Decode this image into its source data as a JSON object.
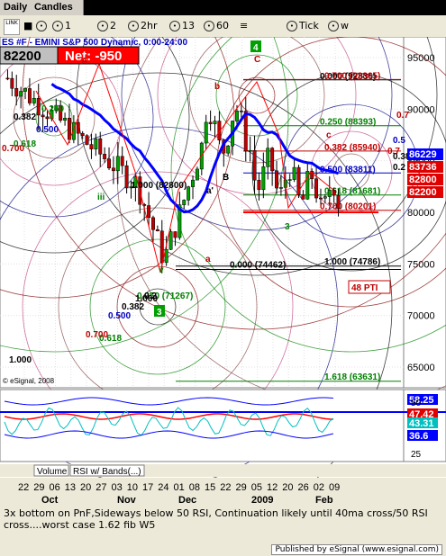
{
  "window": {
    "tab1": "Daily",
    "tab2": "Candles"
  },
  "toolbar": {
    "items": [
      {
        "icon": "link-icon",
        "label": "LINK"
      },
      {
        "icon": "circle-icon",
        "label": "1"
      },
      {
        "icon": "circle-icon",
        "label": "2"
      },
      {
        "icon": "circle-icon",
        "label": "2hr"
      },
      {
        "icon": "circle-icon",
        "label": "13"
      },
      {
        "icon": "circle-icon",
        "label": "60"
      },
      {
        "icon": "circle-icon",
        "label": "Tick"
      },
      {
        "icon": "circle-icon",
        "label": "w"
      }
    ]
  },
  "header": {
    "symbol_line": "ES #F - EMINI S&P 500 Dynamic, 0:00-24:00",
    "price": "82200",
    "net": "Net: -950",
    "box4": "4",
    "box3": "3"
  },
  "chart_data": {
    "type": "candlestick",
    "y_range": [
      63000,
      97000
    ],
    "y_ticks": [
      "95000",
      "90000",
      "85000",
      "80000",
      "75000",
      "70000",
      "65000"
    ],
    "x_ticks": [
      "22",
      "29",
      "06",
      "13",
      "20",
      "27",
      "03",
      "10",
      "17",
      "24",
      "01",
      "08",
      "15",
      "22",
      "29",
      "05",
      "12",
      "20",
      "26",
      "02",
      "09"
    ],
    "x_group_labels": [
      "Oct",
      "Nov",
      "Dec",
      "2009",
      "Feb"
    ],
    "right_badges": [
      {
        "label": "86229",
        "color": "#0000ff"
      },
      {
        "label": "83736",
        "color": "#e00000"
      },
      {
        "label": "82800",
        "color": "#e00000"
      },
      {
        "label": "82200",
        "color": "#e00000"
      }
    ],
    "fib_levels_upper": [
      {
        "label": "0.000 (92836)",
        "value": 92836
      },
      {
        "label": "0.700 (92865)",
        "value": 92865
      },
      {
        "label": "0.250 (88393)",
        "value": 88393
      },
      {
        "label": "0.382 (85940)",
        "value": 85940
      },
      {
        "label": "0.500 (83811)",
        "value": 83811
      },
      {
        "label": "0.618 (81681)",
        "value": 81681
      },
      {
        "label": "0.700 (80201)",
        "value": 80201
      }
    ],
    "fib_levels_lower": [
      {
        "label": "0.000 (74462)",
        "value": 74462
      },
      {
        "label": "1.000 (74786)",
        "value": 74786
      },
      {
        "label": "1.618 (63631)",
        "value": 63631
      }
    ],
    "annotations": [
      "A",
      "C",
      "a",
      "b",
      "c",
      "B",
      "a'",
      "iii",
      "3",
      "v",
      "48 PTI",
      "1.000",
      "0.382",
      "0.500",
      "0.618",
      "0.700",
      "0.250",
      "0.250 (71267)",
      "1.000",
      "0.7",
      "0.7",
      "0.5",
      "0.382",
      "0.2",
      "0.618",
      "0.700",
      "0.500",
      "0.382",
      "0.2",
      "1.000 (82800)"
    ],
    "ema_color": "#0000ff",
    "rsi": {
      "panel_labels": [
        "Volume",
        "RSI w/ Bands(...)"
      ],
      "right_badges": [
        {
          "label": "58.25",
          "color": "#0000ff"
        },
        {
          "label": "47.42",
          "color": "#e00000"
        },
        {
          "label": "43.31",
          "color": "#00c0c0"
        },
        {
          "label": "36.6",
          "color": "#0000ff"
        }
      ],
      "y_ticks": [
        "50",
        "25"
      ]
    },
    "copyright": "© eSignal, 2008"
  },
  "status": {
    "text": "3x bottom on PnF,Sideways below 50 RSI, Continuation likely until 40ma cross/50 RSI cross....worst case 1.62 fib W5"
  },
  "footer": {
    "published": "Published by eSignal (www.esignal.com)"
  }
}
